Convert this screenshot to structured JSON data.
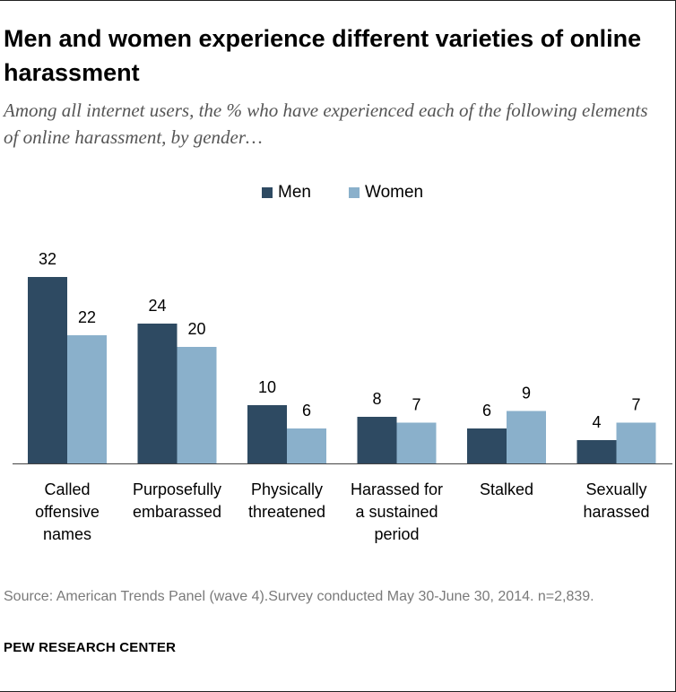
{
  "title": "Men and women experience different varieties of online harassment",
  "subtitle": "Among all internet users, the % who have experienced each of the following elements of online harassment, by gender…",
  "legend": [
    {
      "label": "Men",
      "color": "#2e4a62"
    },
    {
      "label": "Women",
      "color": "#8ab0cb"
    }
  ],
  "source": "Source: American Trends Panel (wave 4).Survey conducted May 30-June 30, 2014. n=2,839.",
  "organization": "PEW RESEARCH CENTER",
  "chart_data": {
    "type": "bar",
    "categories": [
      "Called offensive names",
      "Purposefully embarassed",
      "Physically threatened",
      "Harassed for a sustained period",
      "Stalked",
      "Sexually harassed"
    ],
    "category_lines": [
      "Called\noffensive\nnames",
      "Purposefully\nembarassed",
      "Physically\nthreatened",
      "Harassed for\na sustained\nperiod",
      "Stalked",
      "Sexually\nharassed"
    ],
    "series": [
      {
        "name": "Men",
        "values": [
          32,
          24,
          10,
          8,
          6,
          4
        ],
        "color": "#2e4a62"
      },
      {
        "name": "Women",
        "values": [
          22,
          20,
          6,
          7,
          9,
          7
        ],
        "color": "#8ab0cb"
      }
    ],
    "ylim": [
      0,
      32
    ],
    "grid": false,
    "legend_position": "top-center",
    "data_labels": true
  }
}
